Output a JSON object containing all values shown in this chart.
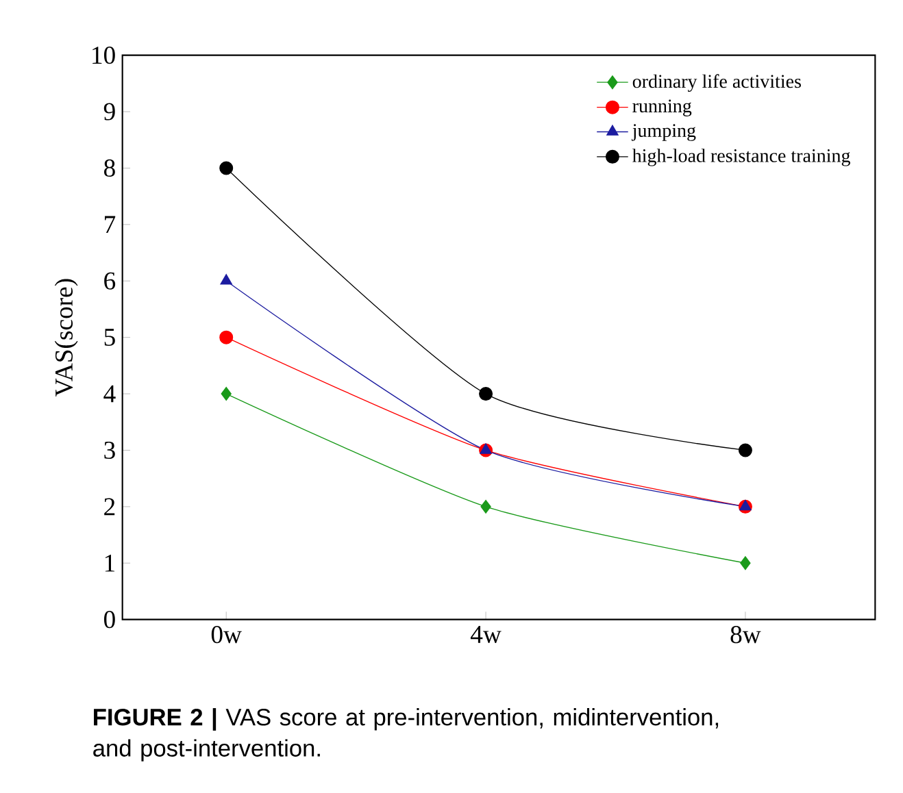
{
  "chart_data": {
    "type": "line",
    "ylabel": "VAS(score)",
    "categories": [
      "0w",
      "4w",
      "8w"
    ],
    "series": [
      {
        "name": "ordinary life activities",
        "color": "#1a9a1a",
        "marker": "diamond",
        "values": [
          4,
          2,
          1
        ]
      },
      {
        "name": "running",
        "color": "#ff0000",
        "marker": "circle",
        "values": [
          5,
          3,
          2
        ]
      },
      {
        "name": "jumping",
        "color": "#1c1ca0",
        "marker": "triangle",
        "values": [
          6,
          3,
          2
        ]
      },
      {
        "name": "high-load resistance training",
        "color": "#000000",
        "marker": "circle",
        "values": [
          8,
          4,
          3
        ]
      }
    ],
    "ylim": [
      0,
      10
    ],
    "yticks": [
      0,
      1,
      2,
      3,
      4,
      5,
      6,
      7,
      8,
      9,
      10
    ],
    "legend": "top right",
    "grid": false,
    "line_style": "solid",
    "annotations": [
      "**FIGURE 2 |** VAS score at pre-intervention, midintervention, and post-intervention."
    ]
  }
}
